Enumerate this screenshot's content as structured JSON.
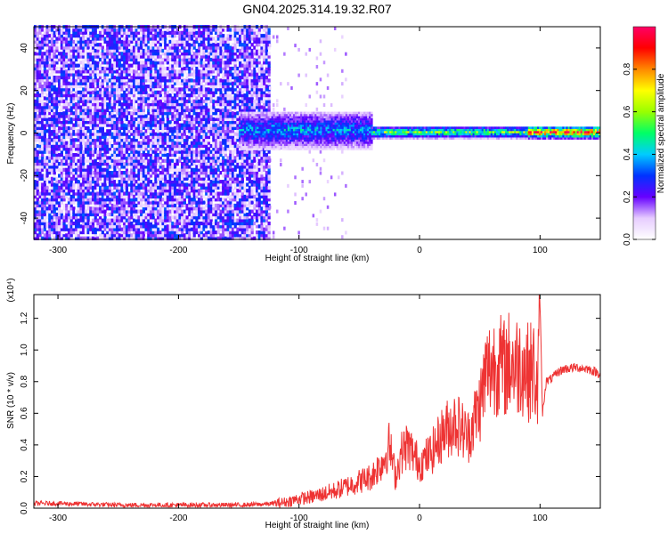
{
  "chart_data": [
    {
      "type": "heatmap",
      "title": "GN04.2025.314.19.32.R07",
      "xlabel": "Height of straight line (km)",
      "ylabel": "Frequency (Hz)",
      "xlim": [
        -320,
        150
      ],
      "ylim": [
        -50,
        50
      ],
      "x_ticks": [
        -300,
        -200,
        -100,
        0,
        100
      ],
      "y_ticks": [
        -40,
        -20,
        0,
        20,
        40
      ],
      "colorbar": {
        "label": "Normalized spectral amplitude",
        "range": [
          0.0,
          1.0
        ],
        "ticks": [
          0.0,
          0.2,
          0.4,
          0.6,
          0.8
        ],
        "colormap": [
          "#ffffff",
          "#e6ccff",
          "#6600ff",
          "#0033ff",
          "#00ccff",
          "#00ff66",
          "#99ff00",
          "#ffff00",
          "#ff8800",
          "#ff0000",
          "#ff0066"
        ]
      },
      "regions": [
        {
          "x_range": [
            -320,
            -125
          ],
          "freq_band": [
            -50,
            50
          ],
          "amplitude": 0.15
        },
        {
          "x_range": [
            -150,
            -40
          ],
          "freq_band": [
            -8,
            10
          ],
          "amplitude": 0.4
        },
        {
          "x_range": [
            -40,
            90
          ],
          "freq_band": [
            -3,
            3
          ],
          "amplitude": 0.6
        },
        {
          "x_range": [
            90,
            150
          ],
          "freq_band": [
            -3,
            3
          ],
          "amplitude": 0.95
        }
      ]
    },
    {
      "type": "line",
      "xlabel": "Height of straight line (km)",
      "ylabel": "SNR (10 * v/v)",
      "y_multiplier": "(x10⁴)",
      "xlim": [
        -320,
        150
      ],
      "ylim": [
        0,
        1.35
      ],
      "x_ticks": [
        -300,
        -200,
        -100,
        0,
        100
      ],
      "y_ticks": [
        0.0,
        0.2,
        0.4,
        0.6,
        0.8,
        1.0,
        1.2
      ],
      "color": "#ee3333",
      "series": [
        {
          "x": [
            -320,
            -300,
            -250,
            -200,
            -150,
            -130,
            -120,
            -110,
            -100,
            -90,
            -80,
            -70,
            -60,
            -50,
            -40,
            -30,
            -25,
            -20,
            -15,
            -10,
            0,
            10,
            20,
            30,
            40,
            50,
            55,
            60,
            65,
            70,
            75,
            80,
            85,
            90,
            95,
            98,
            100,
            102,
            105,
            110,
            115,
            120,
            130,
            140,
            150
          ],
          "values": [
            0.03,
            0.03,
            0.02,
            0.02,
            0.02,
            0.025,
            0.03,
            0.04,
            0.06,
            0.07,
            0.09,
            0.11,
            0.14,
            0.17,
            0.2,
            0.3,
            0.4,
            0.2,
            0.35,
            0.4,
            0.28,
            0.35,
            0.48,
            0.55,
            0.45,
            0.65,
            0.85,
            0.9,
            0.92,
            0.88,
            0.93,
            0.9,
            0.92,
            0.86,
            0.88,
            0.7,
            1.3,
            0.6,
            0.8,
            0.82,
            0.86,
            0.88,
            0.89,
            0.88,
            0.85
          ]
        }
      ]
    }
  ]
}
